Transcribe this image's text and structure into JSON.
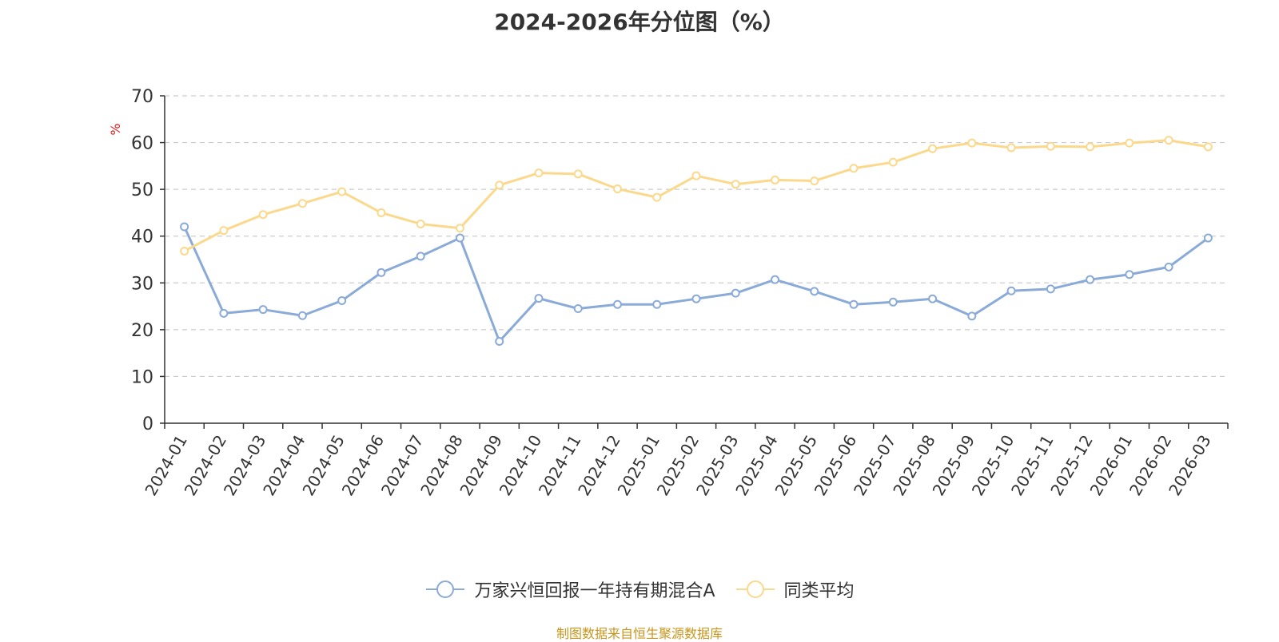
{
  "chart_data": {
    "type": "line",
    "title": "2024-2026年分位图（%）",
    "ylabel": "%",
    "ylim": [
      0,
      70
    ],
    "yticks": [
      0,
      10,
      20,
      30,
      40,
      50,
      60,
      70
    ],
    "grid": true,
    "legend_position": "bottom",
    "categories": [
      "2024-01",
      "2024-02",
      "2024-03",
      "2024-04",
      "2024-05",
      "2024-06",
      "2024-07",
      "2024-08",
      "2024-09",
      "2024-10",
      "2024-11",
      "2024-12",
      "2025-01",
      "2025-02",
      "2025-03",
      "2025-04",
      "2025-05",
      "2025-06",
      "2025-07",
      "2025-08",
      "2025-09",
      "2025-10",
      "2025-11",
      "2025-12",
      "2026-01",
      "2026-02",
      "2026-03"
    ],
    "series": [
      {
        "name": "万家兴恒回报一年持有期混合A",
        "color": "#8aaad8",
        "values": [
          42.0,
          23.5,
          24.3,
          23.0,
          26.2,
          32.2,
          35.7,
          39.6,
          17.5,
          26.7,
          24.5,
          25.4,
          25.4,
          26.6,
          27.8,
          30.7,
          28.2,
          25.4,
          25.9,
          26.6,
          22.9,
          28.3,
          28.7,
          30.7,
          31.8,
          33.4,
          39.6
        ]
      },
      {
        "name": "同类平均",
        "color": "#fbd98c",
        "values": [
          36.8,
          41.2,
          44.6,
          47.0,
          49.5,
          45.0,
          42.6,
          41.7,
          50.9,
          53.5,
          53.3,
          50.1,
          48.3,
          52.9,
          51.1,
          52.0,
          51.8,
          54.5,
          55.8,
          58.7,
          59.9,
          58.9,
          59.2,
          59.1,
          59.9,
          60.5,
          59.1
        ]
      }
    ]
  },
  "source_note": "制图数据来自恒生聚源数据库"
}
